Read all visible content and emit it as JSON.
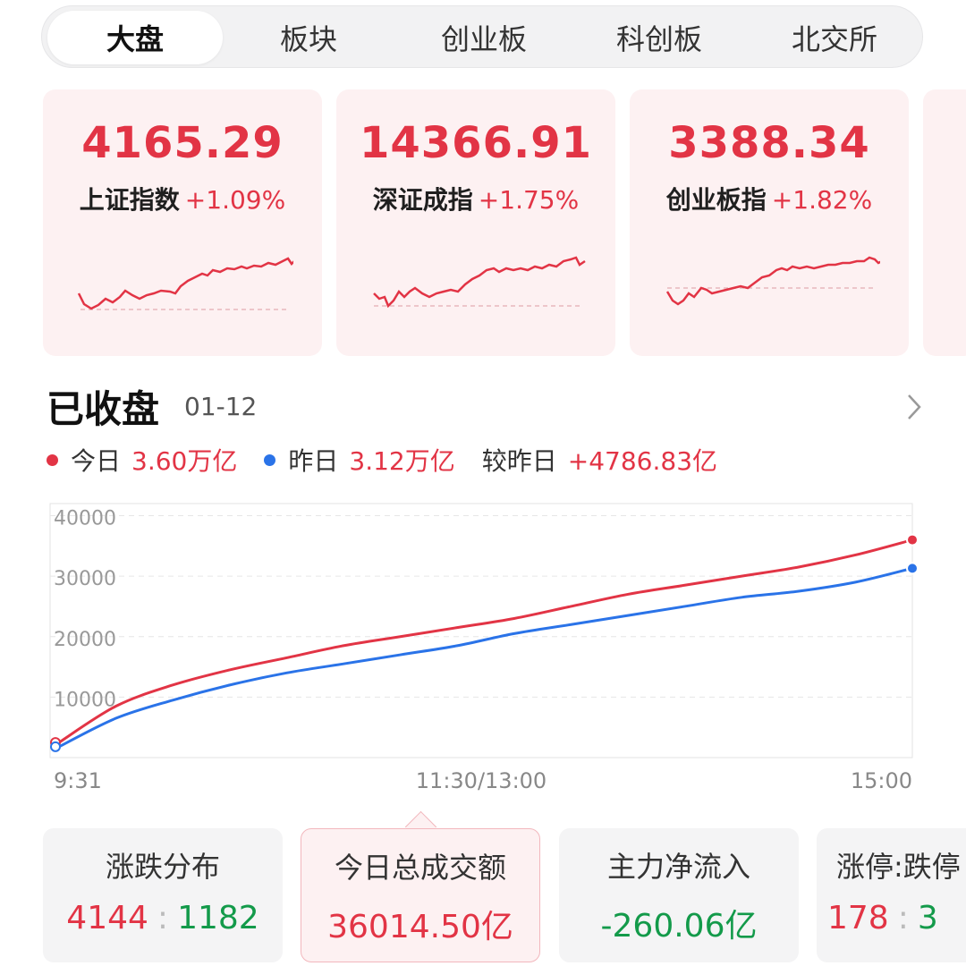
{
  "tabs": [
    {
      "label": "大盘",
      "active": true
    },
    {
      "label": "板块",
      "active": false
    },
    {
      "label": "创业板",
      "active": false
    },
    {
      "label": "科创板",
      "active": false
    },
    {
      "label": "北交所",
      "active": false
    }
  ],
  "indices": [
    {
      "price": "4165.29",
      "name": "上证指数",
      "change": "+1.09%"
    },
    {
      "price": "14366.91",
      "name": "深证成指",
      "change": "+1.75%"
    },
    {
      "price": "3388.34",
      "name": "创业板指",
      "change": "+1.82%"
    }
  ],
  "status": {
    "title": "已收盘",
    "date": "01-12"
  },
  "legend": {
    "today_label": "今日",
    "today_value": "3.60万亿",
    "yesterday_label": "昨日",
    "yesterday_value": "3.12万亿",
    "compare_label": "较昨日",
    "compare_value": "+4786.83亿"
  },
  "colors": {
    "up": "#e23445",
    "down": "#139a4a",
    "yesterday": "#2a73e8"
  },
  "chart_data": {
    "type": "line",
    "x_labels": [
      "9:31",
      "11:30/13:00",
      "15:00"
    ],
    "y_ticks": [
      10000,
      20000,
      30000,
      40000
    ],
    "ylim": [
      0,
      42000
    ],
    "series": [
      {
        "name": "今日",
        "color": "#e23445",
        "values": [
          2500,
          8500,
          12000,
          14500,
          16500,
          18500,
          20000,
          21500,
          23000,
          25000,
          27000,
          28500,
          30000,
          31500,
          33500,
          36000
        ]
      },
      {
        "name": "昨日",
        "color": "#2a73e8",
        "values": [
          1800,
          6500,
          9500,
          12000,
          14000,
          15500,
          17000,
          18500,
          20500,
          22000,
          23500,
          25000,
          26500,
          27500,
          29000,
          31300
        ]
      }
    ]
  },
  "stats": [
    {
      "title": "涨跌分布",
      "up": "4144",
      "down": "1182"
    },
    {
      "title": "今日总成交额",
      "value": "36014.50亿"
    },
    {
      "title": "主力净流入",
      "value": "-260.06亿"
    },
    {
      "title": "涨停:跌停",
      "up": "178",
      "down": "3"
    }
  ]
}
